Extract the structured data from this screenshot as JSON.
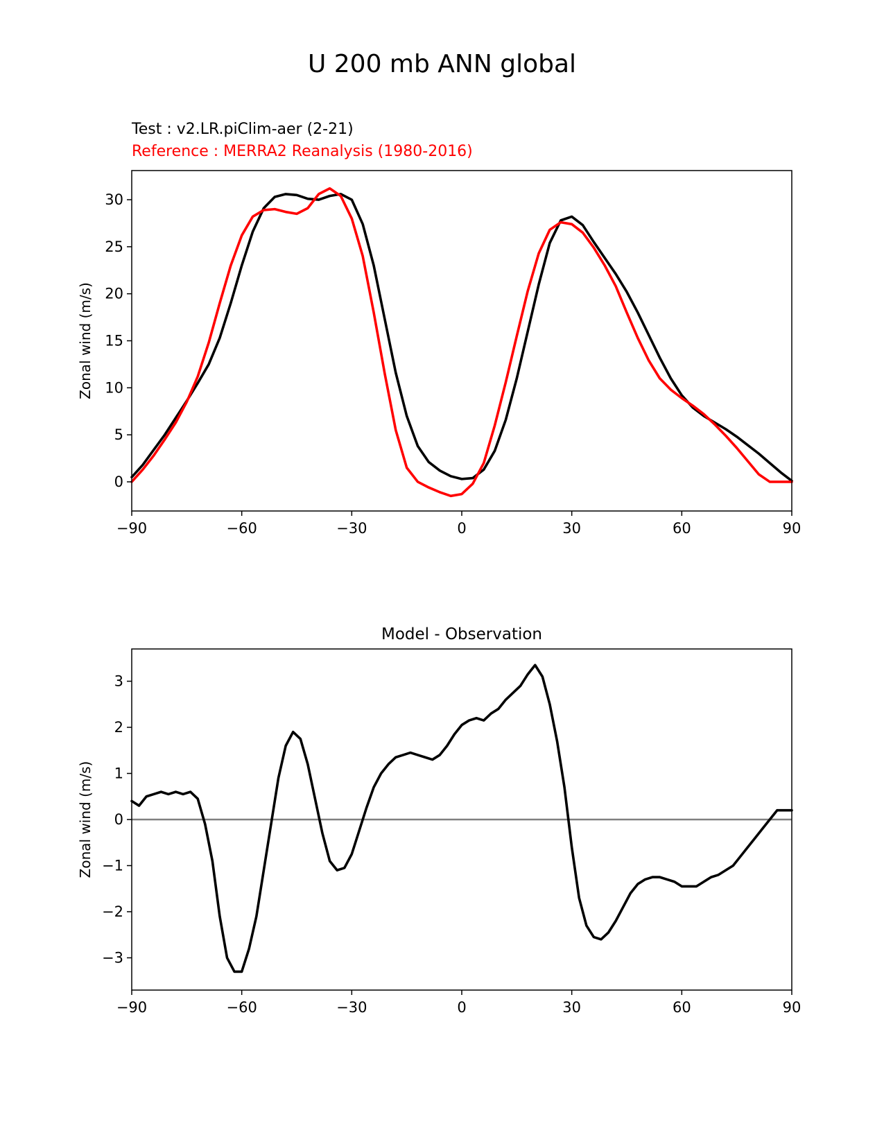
{
  "figure": {
    "suptitle": "U 200 mb ANN global",
    "test_label": "Test : v2.LR.piClim-aer (2-21)",
    "reference_label": "Reference : MERRA2 Reanalysis (1980-2016)",
    "test_color": "#000000",
    "reference_color": "#ff0000",
    "zero_line_color": "#808080"
  },
  "chart_data": [
    {
      "type": "line",
      "title": "",
      "xlabel": "",
      "ylabel": "Zonal wind (m/s)",
      "xlim": [
        -90,
        90
      ],
      "ylim": [
        -3.1,
        33.1
      ],
      "xticks": [
        -90,
        -60,
        -30,
        0,
        30,
        60,
        90
      ],
      "xtick_labels": [
        "−90",
        "−60",
        "−30",
        "0",
        "30",
        "60",
        "90"
      ],
      "yticks": [
        0,
        5,
        10,
        15,
        20,
        25,
        30
      ],
      "ytick_labels": [
        "0",
        "5",
        "10",
        "15",
        "20",
        "25",
        "30"
      ],
      "grid": false,
      "series": [
        {
          "name": "Test : v2.LR.piClim-aer (2-21)",
          "color": "#000000",
          "x": [
            -90,
            -87,
            -84,
            -81,
            -78,
            -75,
            -72,
            -69,
            -66,
            -63,
            -60,
            -57,
            -54,
            -51,
            -48,
            -45,
            -42,
            -39,
            -36,
            -33,
            -30,
            -27,
            -24,
            -21,
            -18,
            -15,
            -12,
            -9,
            -6,
            -3,
            0,
            3,
            6,
            9,
            12,
            15,
            18,
            21,
            24,
            27,
            30,
            33,
            36,
            39,
            42,
            45,
            48,
            51,
            54,
            57,
            60,
            63,
            66,
            69,
            72,
            75,
            78,
            81,
            84,
            87,
            90
          ],
          "y": [
            0.5,
            1.8,
            3.4,
            5.0,
            6.8,
            8.6,
            10.5,
            12.5,
            15.3,
            19.0,
            23.0,
            26.6,
            29.1,
            30.3,
            30.6,
            30.5,
            30.1,
            30.0,
            30.4,
            30.6,
            30.0,
            27.4,
            23.0,
            17.3,
            11.6,
            7.0,
            3.8,
            2.1,
            1.2,
            0.6,
            0.3,
            0.4,
            1.3,
            3.3,
            6.6,
            11.0,
            16.0,
            21.0,
            25.4,
            27.8,
            28.2,
            27.3,
            25.5,
            23.8,
            22.1,
            20.2,
            18.0,
            15.6,
            13.2,
            11.0,
            9.2,
            7.9,
            7.0,
            6.3,
            5.6,
            4.8,
            3.9,
            3.0,
            2.0,
            1.0,
            0.1
          ]
        },
        {
          "name": "Reference : MERRA2 Reanalysis (1980-2016)",
          "color": "#ff0000",
          "x": [
            -90,
            -87,
            -84,
            -81,
            -78,
            -75,
            -72,
            -69,
            -66,
            -63,
            -60,
            -57,
            -54,
            -51,
            -48,
            -45,
            -42,
            -39,
            -36,
            -33,
            -30,
            -27,
            -24,
            -21,
            -18,
            -15,
            -12,
            -9,
            -6,
            -3,
            0,
            3,
            6,
            9,
            12,
            15,
            18,
            21,
            24,
            27,
            30,
            33,
            36,
            39,
            42,
            45,
            48,
            51,
            54,
            57,
            60,
            63,
            66,
            69,
            72,
            75,
            78,
            81,
            84,
            87,
            90
          ],
          "y": [
            0.0,
            1.3,
            2.8,
            4.5,
            6.3,
            8.5,
            11.2,
            14.8,
            19.0,
            23.0,
            26.2,
            28.2,
            28.9,
            29.0,
            28.7,
            28.5,
            29.1,
            30.6,
            31.2,
            30.4,
            28.0,
            24.0,
            18.0,
            11.5,
            5.5,
            1.5,
            0.0,
            -0.6,
            -1.1,
            -1.5,
            -1.3,
            -0.2,
            2.0,
            6.0,
            10.6,
            15.5,
            20.3,
            24.3,
            26.8,
            27.6,
            27.4,
            26.5,
            24.9,
            23.0,
            20.8,
            18.0,
            15.3,
            12.9,
            11.0,
            9.8,
            8.9,
            8.1,
            7.2,
            6.1,
            4.9,
            3.6,
            2.2,
            0.8,
            0.0,
            0,
            0
          ]
        }
      ]
    },
    {
      "type": "line",
      "title": "Model - Observation",
      "xlabel": "",
      "ylabel": "Zonal wind (m/s)",
      "xlim": [
        -90,
        90
      ],
      "ylim": [
        -3.7,
        3.7
      ],
      "xticks": [
        -90,
        -60,
        -30,
        0,
        30,
        60,
        90
      ],
      "xtick_labels": [
        "−90",
        "−60",
        "−30",
        "0",
        "30",
        "60",
        "90"
      ],
      "yticks": [
        -3,
        -2,
        -1,
        0,
        1,
        2,
        3
      ],
      "ytick_labels": [
        "−3",
        "−2",
        "−1",
        "0",
        "1",
        "2",
        "3"
      ],
      "grid": false,
      "zero_line": true,
      "series": [
        {
          "name": "",
          "color": "#000000",
          "x": [
            -90,
            -88,
            -86,
            -84,
            -82,
            -80,
            -78,
            -76,
            -74,
            -72,
            -70,
            -68,
            -66,
            -64,
            -62,
            -60,
            -58,
            -56,
            -54,
            -52,
            -50,
            -48,
            -46,
            -44,
            -42,
            -40,
            -38,
            -36,
            -34,
            -32,
            -30,
            -28,
            -26,
            -24,
            -22,
            -20,
            -18,
            -16,
            -14,
            -12,
            -10,
            -8,
            -6,
            -4,
            -2,
            0,
            2,
            4,
            6,
            8,
            10,
            12,
            14,
            16,
            18,
            20,
            22,
            24,
            26,
            28,
            30,
            32,
            34,
            36,
            38,
            40,
            42,
            44,
            46,
            48,
            50,
            52,
            54,
            56,
            58,
            60,
            62,
            64,
            66,
            68,
            70,
            72,
            74,
            76,
            78,
            80,
            82,
            84,
            86,
            88,
            90
          ],
          "y": [
            0.4,
            0.3,
            0.5,
            0.55,
            0.6,
            0.55,
            0.6,
            0.55,
            0.6,
            0.45,
            -0.1,
            -0.9,
            -2.1,
            -3.0,
            -3.3,
            -3.3,
            -2.8,
            -2.1,
            -1.1,
            -0.1,
            0.9,
            1.6,
            1.9,
            1.75,
            1.2,
            0.45,
            -0.3,
            -0.9,
            -1.1,
            -1.05,
            -0.75,
            -0.25,
            0.25,
            0.7,
            1.0,
            1.2,
            1.35,
            1.4,
            1.45,
            1.4,
            1.35,
            1.3,
            1.4,
            1.6,
            1.85,
            2.05,
            2.15,
            2.2,
            2.15,
            2.3,
            2.4,
            2.6,
            2.75,
            2.9,
            3.15,
            3.35,
            3.1,
            2.5,
            1.7,
            0.7,
            -0.6,
            -1.7,
            -2.3,
            -2.55,
            -2.6,
            -2.45,
            -2.2,
            -1.9,
            -1.6,
            -1.4,
            -1.3,
            -1.25,
            -1.25,
            -1.3,
            -1.35,
            -1.45,
            -1.45,
            -1.45,
            -1.35,
            -1.25,
            -1.2,
            -1.1,
            -1.0,
            -0.8,
            -0.6,
            -0.4,
            -0.2,
            0.0,
            0.2,
            0.2,
            0.2
          ]
        }
      ]
    }
  ]
}
